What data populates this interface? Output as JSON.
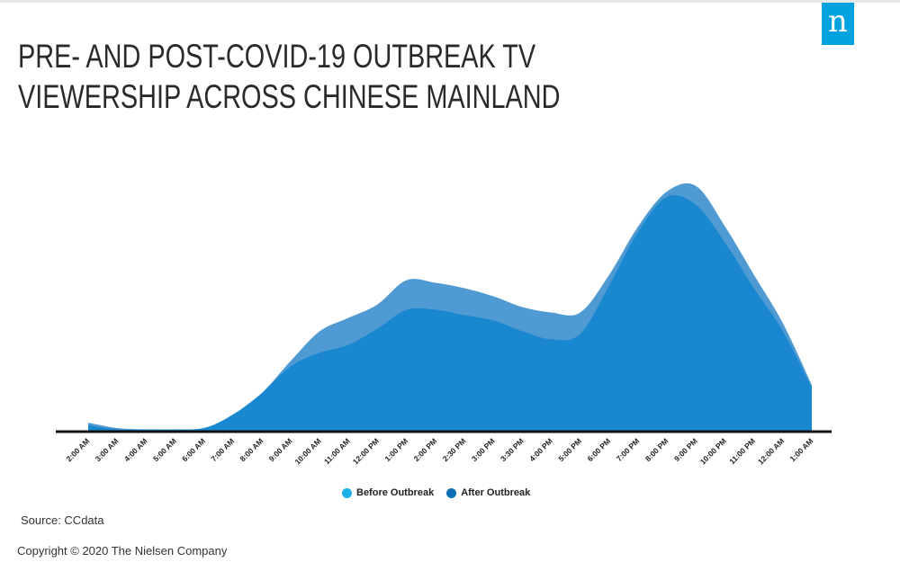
{
  "title": {
    "line1": "PRE- AND POST-COVID-19 OUTBREAK TV",
    "line2": "VIEWERSHIP ACROSS CHINESE MAINLAND"
  },
  "logo_text": "n",
  "source": "Source: CCdata",
  "copyright": "Copyright © 2020 The Nielsen Company",
  "colors": {
    "before": "#4f9ad2",
    "after": "#1a88d0",
    "legend_before": "#1ab0e8",
    "legend_after": "#0e6fb5",
    "axis": "#111111",
    "brand": "#00a3e0"
  },
  "chart_data": {
    "type": "area",
    "title": "PRE- AND POST-COVID-19 OUTBREAK TV VIEWERSHIP ACROSS CHINESE MAINLAND",
    "xlabel": "",
    "ylabel": "",
    "categories": [
      "2:00 AM",
      "3:00 AM",
      "4:00 AM",
      "5:00 AM",
      "6:00 AM",
      "7:00 AM",
      "8:00 AM",
      "9:00 AM",
      "10:00 AM",
      "11:00 AM",
      "12:00 PM",
      "1:00 PM",
      "2:00 PM",
      "2:30 PM",
      "3:00 PM",
      "3:30 PM",
      "4:00 PM",
      "5:00 PM",
      "6:00 PM",
      "7:00 PM",
      "8:00 PM",
      "9:00 PM",
      "10:00 PM",
      "11:00 PM",
      "12:00 AM",
      "1:00 AM"
    ],
    "series": [
      {
        "name": "Before Outbreak",
        "values": [
          3,
          1,
          0.5,
          0.5,
          1,
          5,
          14,
          26,
          37,
          42,
          47,
          56,
          55,
          53,
          50,
          46,
          44,
          44,
          58,
          76,
          89,
          91,
          76,
          58,
          40,
          17
        ]
      },
      {
        "name": "After Outbreak",
        "values": [
          2,
          0.5,
          0.5,
          0.5,
          1,
          6,
          14,
          24,
          29,
          32,
          38,
          45,
          45,
          43,
          41,
          37,
          34,
          36,
          54,
          74,
          87,
          84,
          70,
          53,
          37,
          16
        ]
      }
    ],
    "ylim": [
      0,
      100
    ],
    "grid": false,
    "legend": {
      "position": "bottom",
      "entries": [
        "Before Outbreak",
        "After Outbreak"
      ]
    }
  }
}
